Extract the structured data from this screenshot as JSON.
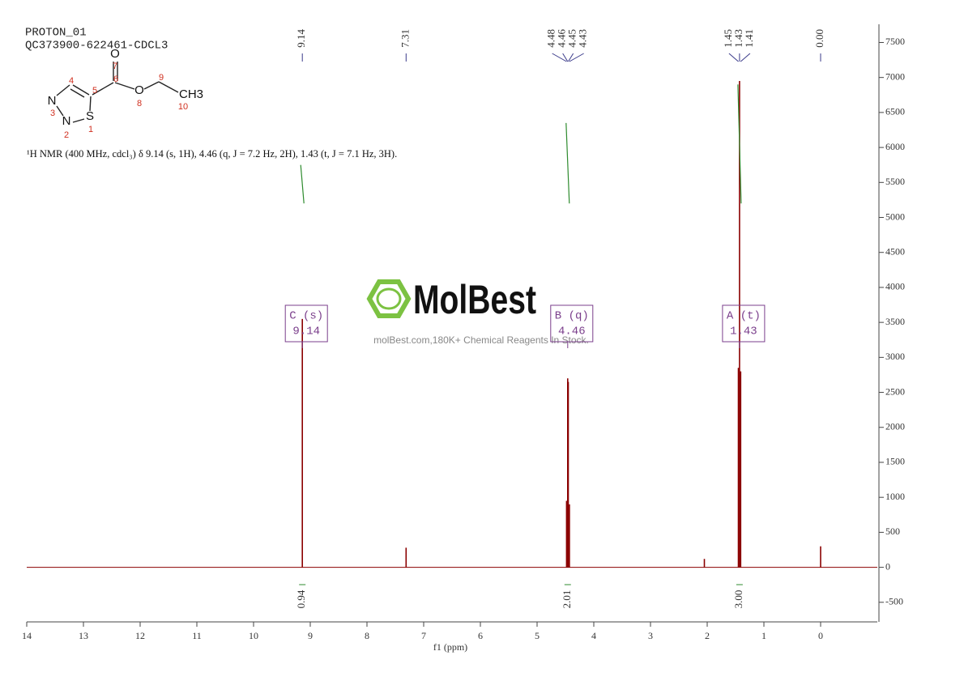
{
  "chart_data": {
    "type": "line",
    "header": [
      "PROTON_01",
      "QC373900-622461-CDCL3"
    ],
    "description": "¹H NMR (400 MHz, cdcl₃) δ 9.14 (s, 1H), 4.46 (q, J = 7.2 Hz, 2H), 1.43 (t, J = 7.1 Hz, 3H).",
    "watermark": {
      "brand": "MolBest",
      "tagline": "molBest.com,180K+ Chemical Reagents In Stock."
    },
    "molecule": {
      "atoms": [
        "O",
        "N",
        "N",
        "S",
        "O",
        "CH3"
      ],
      "numbers": [
        1,
        2,
        3,
        4,
        5,
        6,
        7,
        8,
        9,
        10
      ]
    },
    "xlabel": "f1 (ppm)",
    "xlim": [
      14,
      -1
    ],
    "xticks": [
      14,
      13,
      12,
      11,
      10,
      9,
      8,
      7,
      6,
      5,
      4,
      3,
      2,
      1,
      0
    ],
    "ylim": [
      -780,
      7760
    ],
    "yticks": [
      -500,
      0,
      500,
      1000,
      1500,
      2000,
      2500,
      3000,
      3500,
      4000,
      4500,
      5000,
      5500,
      6000,
      6500,
      7000,
      7500
    ],
    "color": "#8b0000",
    "x": [
      9.14,
      7.31,
      4.48,
      4.46,
      4.45,
      4.43,
      2.05,
      1.45,
      1.43,
      1.41,
      0.0
    ],
    "values": [
      3550,
      280,
      950,
      2700,
      2650,
      900,
      120,
      2850,
      6950,
      2800,
      300
    ],
    "peak_labels": [
      9.14,
      7.31,
      4.48,
      4.46,
      4.45,
      4.43,
      1.45,
      1.43,
      1.41,
      {
        "value": 0,
        "label": "0.00"
      }
    ],
    "multiplets": [
      {
        "label": "C (s)",
        "shift": 9.14
      },
      {
        "label": "B (q)",
        "shift": 4.46
      },
      {
        "label": "A (t)",
        "shift": 1.43
      }
    ],
    "integral_x": [
      9.14,
      4.46,
      1.43
    ],
    "integral_values": [
      0.94,
      2.01,
      {
        "value": 3,
        "label": "3.00"
      }
    ],
    "integral_curves": {
      "start": [
        5200,
        5200,
        5200
      ],
      "end": [
        5750,
        6350,
        6900
      ],
      "color": "#2e8b2e"
    }
  }
}
